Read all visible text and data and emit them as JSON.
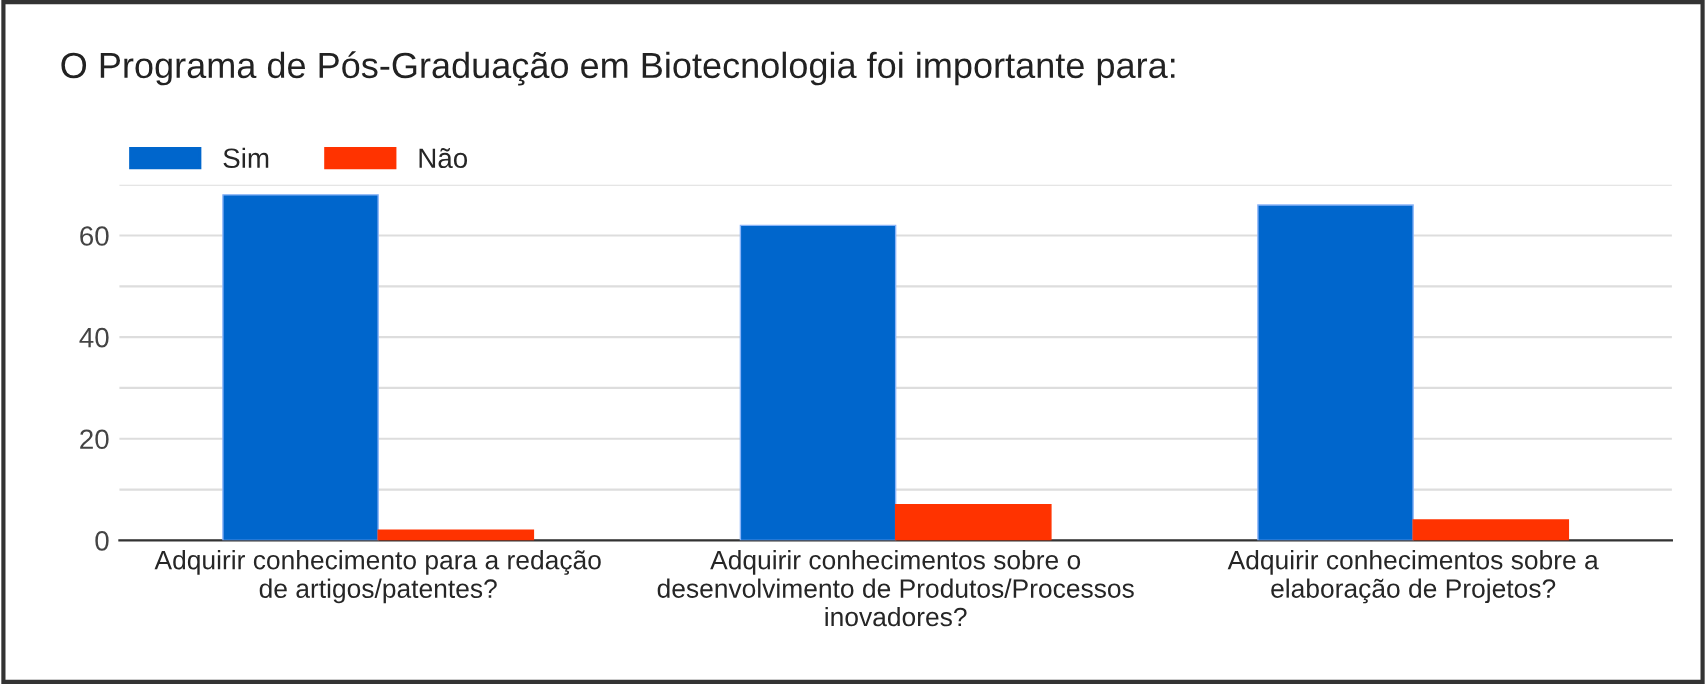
{
  "chart_data": {
    "type": "bar",
    "title": "O Programa de Pós-Graduação em Biotecnologia foi importante para:",
    "categories": [
      "Adquirir conhecimento para a redação\nde artigos/patentes?",
      "Adquirir conhecimentos sobre o\ndesenvolvimento de Produtos/Processos\ninovadores?",
      "Adquirir conhecimentos sobre a\nelaboração de Projetos?"
    ],
    "series": [
      {
        "name": "Sim",
        "color": "#0066cc",
        "values": [
          68,
          62,
          66
        ]
      },
      {
        "name": "Não",
        "color": "#ff3300",
        "values": [
          2,
          7,
          4
        ]
      }
    ],
    "ylim": [
      0,
      70
    ],
    "yticks": [
      0,
      {
        "value": 10,
        "label": null
      },
      20,
      {
        "value": 30,
        "label": null
      },
      40,
      {
        "value": 50,
        "label": null
      },
      60,
      {
        "value": 70,
        "label": null
      }
    ],
    "grid": "y",
    "legend": "top left"
  }
}
